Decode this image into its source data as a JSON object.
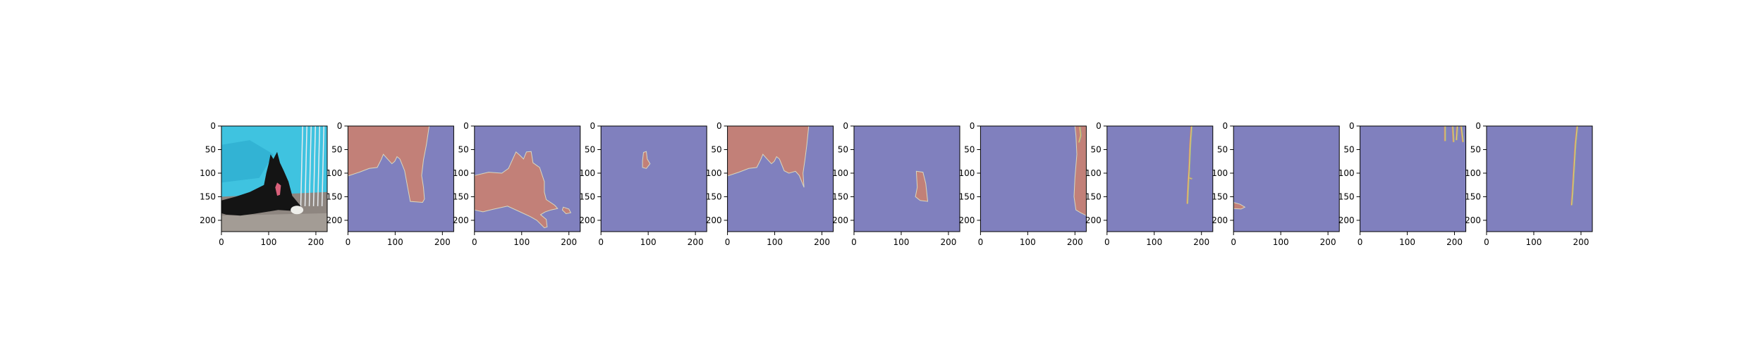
{
  "figure": {
    "background": "#ffffff",
    "mask_colors": {
      "background": "#8080be",
      "region": "#c28078",
      "edge_light": "#d8d8c0",
      "edge_yellow": "#e0d070",
      "edge_green": "#80c0a0"
    },
    "photo_colors": {
      "tarp": "#3fc3e0",
      "tarp_dark": "#2aa8cc",
      "gravel": "#8e8680",
      "gravel_light": "#b8b2aa",
      "dog": "#141414",
      "tongue": "#d9607a",
      "fence": "#e8ecef"
    }
  },
  "chart_data": [
    {
      "panel": 1,
      "type": "image",
      "content": "photo",
      "xlim": [
        0,
        224
      ],
      "ylim": [
        224,
        0
      ],
      "xticks": [
        0,
        100,
        200
      ],
      "yticks": [
        0,
        50,
        100,
        150,
        200
      ],
      "xtick_labels": [
        "0",
        "100",
        "200"
      ],
      "ytick_labels": [
        "0",
        "50",
        "100",
        "150",
        "200"
      ],
      "grid": false
    },
    {
      "panel": 2,
      "type": "image",
      "content": "mask",
      "xlim": [
        0,
        224
      ],
      "ylim": [
        224,
        0
      ],
      "xticks": [
        0,
        100,
        200
      ],
      "yticks": [
        0,
        50,
        100,
        150,
        200
      ],
      "xtick_labels": [
        "0",
        "100",
        "200"
      ],
      "ytick_labels": [
        "0",
        "50",
        "100",
        "150",
        "200"
      ],
      "grid": false,
      "region": [
        [
          0,
          0
        ],
        [
          172,
          0
        ],
        [
          166,
          40
        ],
        [
          160,
          72
        ],
        [
          156,
          105
        ],
        [
          160,
          130
        ],
        [
          162,
          155
        ],
        [
          158,
          162
        ],
        [
          132,
          160
        ],
        [
          126,
          128
        ],
        [
          120,
          95
        ],
        [
          110,
          70
        ],
        [
          104,
          65
        ],
        [
          99,
          75
        ],
        [
          93,
          80
        ],
        [
          84,
          70
        ],
        [
          75,
          60
        ],
        [
          70,
          72
        ],
        [
          62,
          88
        ],
        [
          45,
          90
        ],
        [
          24,
          98
        ],
        [
          0,
          106
        ]
      ]
    },
    {
      "panel": 3,
      "type": "image",
      "content": "mask",
      "xlim": [
        0,
        224
      ],
      "ylim": [
        224,
        0
      ],
      "xticks": [
        0,
        100,
        200
      ],
      "yticks": [
        0,
        50,
        100,
        150,
        200
      ],
      "xtick_labels": [
        "0",
        "100",
        "200"
      ],
      "ytick_labels": [
        "0",
        "50",
        "100",
        "150",
        "200"
      ],
      "grid": false,
      "region": [
        [
          0,
          105
        ],
        [
          30,
          98
        ],
        [
          58,
          100
        ],
        [
          72,
          90
        ],
        [
          88,
          55
        ],
        [
          96,
          62
        ],
        [
          104,
          70
        ],
        [
          110,
          55
        ],
        [
          120,
          54
        ],
        [
          124,
          78
        ],
        [
          138,
          88
        ],
        [
          148,
          118
        ],
        [
          148,
          140
        ],
        [
          152,
          156
        ],
        [
          170,
          168
        ],
        [
          176,
          175
        ],
        [
          162,
          178
        ],
        [
          150,
          182
        ],
        [
          140,
          188
        ],
        [
          152,
          198
        ],
        [
          154,
          214
        ],
        [
          148,
          216
        ],
        [
          132,
          200
        ],
        [
          118,
          192
        ],
        [
          92,
          180
        ],
        [
          70,
          170
        ],
        [
          38,
          177
        ],
        [
          18,
          182
        ],
        [
          0,
          178
        ]
      ],
      "region2": [
        [
          188,
          172
        ],
        [
          200,
          176
        ],
        [
          204,
          184
        ],
        [
          194,
          186
        ],
        [
          186,
          178
        ]
      ]
    },
    {
      "panel": 4,
      "type": "image",
      "content": "mask",
      "xlim": [
        0,
        224
      ],
      "ylim": [
        224,
        0
      ],
      "xticks": [
        0,
        100,
        200
      ],
      "yticks": [
        0,
        50,
        100,
        150,
        200
      ],
      "xtick_labels": [
        "0",
        "100",
        "200"
      ],
      "ytick_labels": [
        "0",
        "50",
        "100",
        "150",
        "200"
      ],
      "grid": false,
      "region": [
        [
          90,
          56
        ],
        [
          96,
          54
        ],
        [
          98,
          70
        ],
        [
          104,
          80
        ],
        [
          96,
          90
        ],
        [
          88,
          88
        ],
        [
          88,
          74
        ]
      ]
    },
    {
      "panel": 5,
      "type": "image",
      "content": "mask",
      "xlim": [
        0,
        224
      ],
      "ylim": [
        224,
        0
      ],
      "xticks": [
        0,
        100,
        200
      ],
      "yticks": [
        0,
        50,
        100,
        150,
        200
      ],
      "xtick_labels": [
        "0",
        "100",
        "200"
      ],
      "ytick_labels": [
        "0",
        "50",
        "100",
        "150",
        "200"
      ],
      "grid": false,
      "region": [
        [
          0,
          0
        ],
        [
          172,
          0
        ],
        [
          168,
          40
        ],
        [
          164,
          72
        ],
        [
          160,
          100
        ],
        [
          162,
          130
        ],
        [
          152,
          105
        ],
        [
          144,
          96
        ],
        [
          130,
          100
        ],
        [
          120,
          95
        ],
        [
          110,
          70
        ],
        [
          104,
          65
        ],
        [
          99,
          75
        ],
        [
          93,
          80
        ],
        [
          84,
          70
        ],
        [
          75,
          60
        ],
        [
          70,
          72
        ],
        [
          62,
          88
        ],
        [
          45,
          90
        ],
        [
          24,
          98
        ],
        [
          0,
          106
        ]
      ]
    },
    {
      "panel": 6,
      "type": "image",
      "content": "mask",
      "xlim": [
        0,
        224
      ],
      "ylim": [
        224,
        0
      ],
      "xticks": [
        0,
        100,
        200
      ],
      "yticks": [
        0,
        50,
        100,
        150,
        200
      ],
      "xtick_labels": [
        "0",
        "100",
        "200"
      ],
      "ytick_labels": [
        "0",
        "50",
        "100",
        "150",
        "200"
      ],
      "grid": false,
      "region": [
        [
          132,
          96
        ],
        [
          146,
          98
        ],
        [
          152,
          122
        ],
        [
          156,
          160
        ],
        [
          140,
          158
        ],
        [
          130,
          150
        ],
        [
          134,
          130
        ]
      ]
    },
    {
      "panel": 7,
      "type": "image",
      "content": "mask",
      "xlim": [
        0,
        224
      ],
      "ylim": [
        224,
        0
      ],
      "xticks": [
        0,
        100,
        200
      ],
      "yticks": [
        0,
        50,
        100,
        150,
        200
      ],
      "xtick_labels": [
        "0",
        "100",
        "200"
      ],
      "ytick_labels": [
        "0",
        "50",
        "100",
        "150",
        "200"
      ],
      "grid": false,
      "region": [
        [
          200,
          0
        ],
        [
          224,
          0
        ],
        [
          224,
          190
        ],
        [
          212,
          184
        ],
        [
          202,
          178
        ],
        [
          198,
          150
        ],
        [
          200,
          110
        ],
        [
          204,
          60
        ],
        [
          202,
          20
        ]
      ],
      "edges": [
        [
          [
            210,
            2
          ],
          [
            212,
            20
          ],
          [
            208,
            35
          ]
        ]
      ]
    },
    {
      "panel": 8,
      "type": "image",
      "content": "mask",
      "xlim": [
        0,
        224
      ],
      "ylim": [
        224,
        0
      ],
      "xticks": [
        0,
        100,
        200
      ],
      "yticks": [
        0,
        50,
        100,
        150,
        200
      ],
      "xtick_labels": [
        "0",
        "100",
        "200"
      ],
      "ytick_labels": [
        "0",
        "50",
        "100",
        "150",
        "200"
      ],
      "grid": false,
      "edges": [
        [
          [
            179,
            0
          ],
          [
            176,
            40
          ],
          [
            174,
            90
          ],
          [
            172,
            120
          ],
          [
            170,
            165
          ]
        ],
        [
          [
            174,
            110
          ],
          [
            180,
            112
          ]
        ]
      ]
    },
    {
      "panel": 9,
      "type": "image",
      "content": "mask",
      "xlim": [
        0,
        224
      ],
      "ylim": [
        224,
        0
      ],
      "xticks": [
        0,
        100,
        200
      ],
      "yticks": [
        0,
        50,
        100,
        150,
        200
      ],
      "xtick_labels": [
        "0",
        "100",
        "200"
      ],
      "ytick_labels": [
        "0",
        "50",
        "100",
        "150",
        "200"
      ],
      "grid": false,
      "region": [
        [
          0,
          162
        ],
        [
          14,
          166
        ],
        [
          24,
          172
        ],
        [
          16,
          176
        ],
        [
          0,
          175
        ]
      ]
    },
    {
      "panel": 10,
      "type": "image",
      "content": "mask",
      "xlim": [
        0,
        224
      ],
      "ylim": [
        224,
        0
      ],
      "xticks": [
        0,
        100,
        200
      ],
      "yticks": [
        0,
        50,
        100,
        150,
        200
      ],
      "xtick_labels": [
        "0",
        "100",
        "200"
      ],
      "ytick_labels": [
        "0",
        "50",
        "100",
        "150",
        "200"
      ],
      "grid": false,
      "edges": [
        [
          [
            180,
            0
          ],
          [
            180,
            32
          ]
        ],
        [
          [
            196,
            0
          ],
          [
            198,
            34
          ]
        ],
        [
          [
            206,
            0
          ],
          [
            204,
            30
          ]
        ],
        [
          [
            214,
            0
          ],
          [
            218,
            34
          ]
        ]
      ]
    },
    {
      "panel": 11,
      "type": "image",
      "content": "mask",
      "xlim": [
        0,
        224
      ],
      "ylim": [
        224,
        0
      ],
      "xticks": [
        0,
        100,
        200
      ],
      "yticks": [
        0,
        50,
        100,
        150,
        200
      ],
      "xtick_labels": [
        "0",
        "100",
        "200"
      ],
      "ytick_labels": [
        "0",
        "50",
        "100",
        "150",
        "200"
      ],
      "grid": false,
      "edges": [
        [
          [
            192,
            0
          ],
          [
            188,
            40
          ],
          [
            185,
            90
          ],
          [
            182,
            140
          ],
          [
            180,
            168
          ]
        ]
      ]
    }
  ]
}
